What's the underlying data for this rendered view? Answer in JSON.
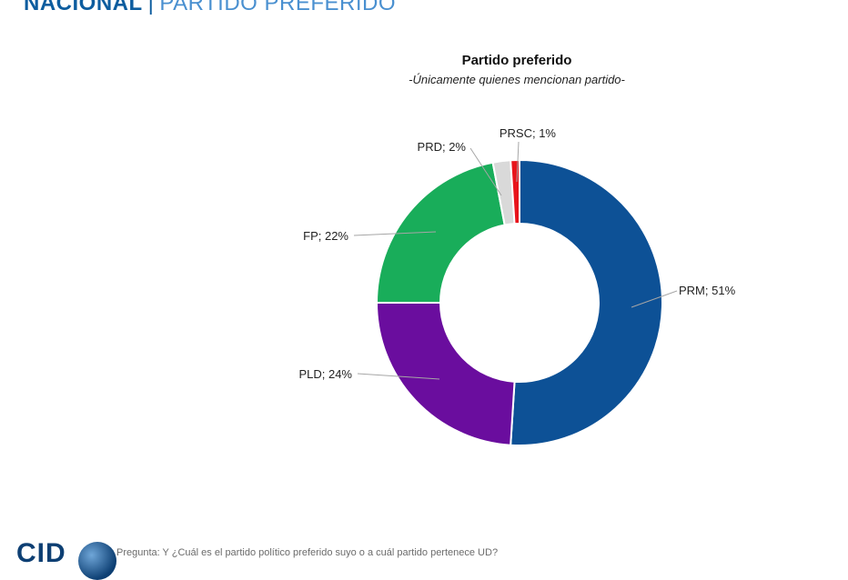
{
  "header": {
    "strong": "NACIONAL",
    "separator": "|",
    "light": "PARTIDO PREFERIDO"
  },
  "chart_data": {
    "type": "pie",
    "title": "Partido preferido",
    "subtitle": "-Únicamente quienes mencionan partido-",
    "donut": true,
    "legend": "none",
    "slices": [
      {
        "label": "PRM",
        "value": 51,
        "display": "PRM; 51%",
        "color": "#0d5196"
      },
      {
        "label": "PLD",
        "value": 24,
        "display": "PLD; 24%",
        "color": "#6a0d9e"
      },
      {
        "label": "FP",
        "value": 22,
        "display": "FP; 22%",
        "color": "#19ad5a"
      },
      {
        "label": "PRD",
        "value": 2,
        "display": "PRD; 2%",
        "color": "#d9d9d9"
      },
      {
        "label": "PRSC",
        "value": 1,
        "display": "PRSC; 1%",
        "color": "#e8141b"
      }
    ]
  },
  "footer": {
    "logo_text": "CID",
    "question": "Pregunta: Y ¿Cuál es el partido político preferido suyo o a cuál partido pertenece UD?",
    "source": ""
  }
}
